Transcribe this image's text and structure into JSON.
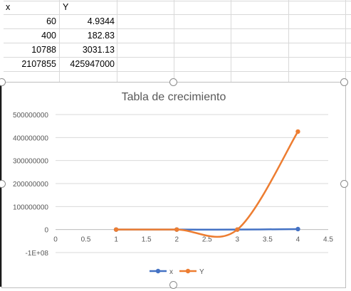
{
  "sheet": {
    "headers": {
      "col_a": "x",
      "col_b": "Y"
    },
    "rows": [
      {
        "x": "60",
        "y": "4.9344"
      },
      {
        "x": "400",
        "y": "182.83"
      },
      {
        "x": "10788",
        "y": "3031.13"
      },
      {
        "x": "2107855",
        "y": "425947000"
      }
    ]
  },
  "chart_data": {
    "type": "line",
    "title": "Tabla de crecimiento",
    "categories": [
      1,
      2,
      3,
      4
    ],
    "series": [
      {
        "name": "x",
        "values": [
          60,
          400,
          10788,
          2107855
        ],
        "color": "#4472c4"
      },
      {
        "name": "Y",
        "values": [
          4.9344,
          182.83,
          3031.13,
          425947000
        ],
        "color": "#ed7d31"
      }
    ],
    "x_ticks": [
      "0",
      "0.5",
      "1",
      "1.5",
      "2",
      "2.5",
      "3",
      "3.5",
      "4",
      "4.5"
    ],
    "y_ticks": [
      "500000000",
      "400000000",
      "300000000",
      "200000000",
      "100000000",
      "0",
      "-1E+08"
    ],
    "xlim": [
      0,
      4.5
    ],
    "ylim": [
      -100000000,
      500000000
    ],
    "smoothed": true,
    "grid": true,
    "legend_position": "bottom"
  }
}
